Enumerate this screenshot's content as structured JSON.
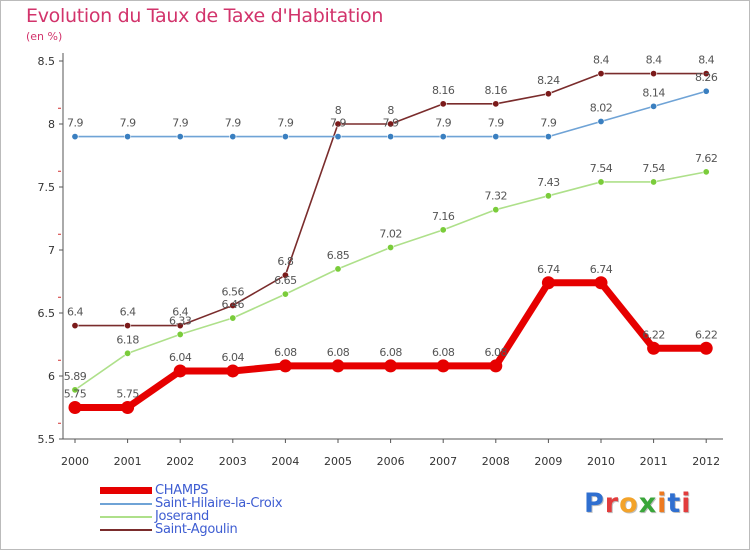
{
  "title": "Evolution du Taux de Taxe d'Habitation",
  "subtitle": "(en %)",
  "brand": {
    "text": "Proxiti",
    "colors": [
      "#2f6fd0",
      "#e23c3c",
      "#f3a32a",
      "#3aa63a",
      "#ed7a20",
      "#2f6fd0",
      "#e23c3c"
    ]
  },
  "chart_data": {
    "type": "line",
    "title": "Evolution du Taux de Taxe d'Habitation",
    "ylabel": "(en %)",
    "xlabel": "",
    "ylim": [
      5.5,
      8.5
    ],
    "yticks": [
      "5.5",
      "6",
      "6.5",
      "7",
      "7.5",
      "8",
      "8.5"
    ],
    "categories": [
      "2000",
      "2001",
      "2002",
      "2003",
      "2004",
      "2005",
      "2006",
      "2007",
      "2008",
      "2009",
      "2010",
      "2011",
      "2012"
    ],
    "grid": false,
    "legend": "bottom-left",
    "series": [
      {
        "name": "Saint-Agoulin",
        "color": "#7b1a1a",
        "line": "#7a2c2c",
        "labels": [
          "6.4",
          "6.4",
          "6.4",
          "6.56",
          "6.8",
          "8",
          "8",
          "8.16",
          "8.16",
          "8.24",
          "8.4",
          "8.4",
          "8.4"
        ],
        "values": [
          6.4,
          6.4,
          6.4,
          6.56,
          6.8,
          8,
          8,
          8.16,
          8.16,
          8.24,
          8.4,
          8.4,
          8.4
        ]
      },
      {
        "name": "Saint-Hilaire-la-Croix",
        "color": "#3a7fc0",
        "line": "#6fa3d6",
        "labels": [
          "7.9",
          "7.9",
          "7.9",
          "7.9",
          "7.9",
          "7.9",
          "7.9",
          "7.9",
          "7.9",
          "7.9",
          "8.02",
          "8.14",
          "8.26"
        ],
        "values": [
          7.9,
          7.9,
          7.9,
          7.9,
          7.9,
          7.9,
          7.9,
          7.9,
          7.9,
          7.9,
          8.02,
          8.14,
          8.26
        ]
      },
      {
        "name": "Joserand",
        "color": "#7acc3a",
        "line": "#aee08a",
        "labels": [
          "5.89",
          "6.18",
          "6.33",
          "6.46",
          "6.65",
          "6.85",
          "7.02",
          "7.16",
          "7.32",
          "7.43",
          "7.54",
          "7.54",
          "7.62"
        ],
        "values": [
          5.89,
          6.18,
          6.33,
          6.46,
          6.65,
          6.85,
          7.02,
          7.16,
          7.32,
          7.43,
          7.54,
          7.54,
          7.62
        ]
      },
      {
        "name": "CHAMPS",
        "color": "#e60000",
        "line": "#e60000",
        "labels": [
          "5.75",
          "5.75",
          "6.04",
          "6.04",
          "6.08",
          "6.08",
          "6.08",
          "6.08",
          "6.08",
          "6.74",
          "6.74",
          "6.22",
          "6.22"
        ],
        "values": [
          5.75,
          5.75,
          6.04,
          6.04,
          6.08,
          6.08,
          6.08,
          6.08,
          6.08,
          6.74,
          6.74,
          6.22,
          6.22
        ]
      }
    ],
    "legend_order": [
      "CHAMPS",
      "Saint-Hilaire-la-Croix",
      "Joserand",
      "Saint-Agoulin"
    ]
  }
}
